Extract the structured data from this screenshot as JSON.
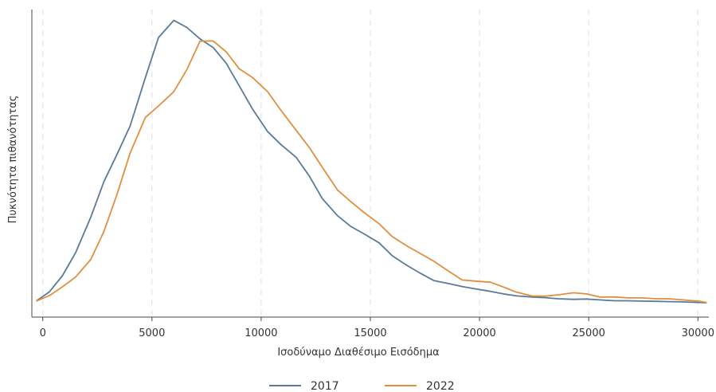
{
  "chart_data": {
    "type": "line",
    "xlabel": "Ισοδύναμο Διαθέσιμο Εισόδημα",
    "ylabel": "Πυκνότητα πιθανότητας",
    "xlim": [
      -500,
      30500
    ],
    "ylim": [
      0,
      1.0
    ],
    "x_ticks": [
      0,
      5000,
      10000,
      15000,
      20000,
      25000,
      30000
    ],
    "x_tick_labels": [
      "0",
      "5000",
      "10000",
      "15000",
      "20000",
      "25000",
      "30000"
    ],
    "y_ticks_shown": false,
    "grid": "vertical dashed",
    "legend_position": "bottom",
    "series": [
      {
        "name": "2017",
        "color": "#5b7a99",
        "x": [
          -300,
          300,
          900,
          1500,
          2200,
          2800,
          3400,
          4000,
          4700,
          5300,
          6000,
          6600,
          7200,
          7800,
          8400,
          9000,
          9600,
          10300,
          10900,
          11600,
          12200,
          12800,
          13500,
          14100,
          14700,
          15400,
          16000,
          16700,
          17300,
          17900,
          18600,
          19200,
          19800,
          20500,
          21100,
          21700,
          22400,
          23000,
          23600,
          24300,
          24900,
          25500,
          26200,
          26800,
          27400,
          28100,
          28700,
          29300,
          30000,
          30400
        ],
        "y": [
          0.006,
          0.038,
          0.095,
          0.175,
          0.3,
          0.425,
          0.52,
          0.62,
          0.79,
          0.93,
          0.99,
          0.965,
          0.925,
          0.895,
          0.84,
          0.76,
          0.68,
          0.6,
          0.555,
          0.51,
          0.445,
          0.365,
          0.305,
          0.268,
          0.242,
          0.21,
          0.165,
          0.13,
          0.103,
          0.078,
          0.067,
          0.057,
          0.049,
          0.04,
          0.031,
          0.024,
          0.02,
          0.018,
          0.014,
          0.012,
          0.013,
          0.01,
          0.007,
          0.007,
          0.006,
          0.005,
          0.004,
          0.003,
          0.001,
          0.0
        ]
      },
      {
        "name": "2022",
        "color": "#e08f3e",
        "x": [
          -300,
          300,
          900,
          1500,
          2200,
          2800,
          3400,
          4000,
          4700,
          5300,
          6000,
          6600,
          7200,
          7800,
          8400,
          9000,
          9600,
          10300,
          10900,
          11600,
          12200,
          12800,
          13500,
          14100,
          14700,
          15400,
          16000,
          16700,
          17300,
          17900,
          18600,
          19200,
          19800,
          20500,
          21100,
          21700,
          22400,
          23000,
          23600,
          24300,
          24900,
          25500,
          26200,
          26800,
          27400,
          28100,
          28700,
          29300,
          30000,
          30400
        ],
        "y": [
          0.006,
          0.025,
          0.056,
          0.09,
          0.152,
          0.25,
          0.38,
          0.525,
          0.65,
          0.69,
          0.74,
          0.818,
          0.917,
          0.918,
          0.88,
          0.82,
          0.79,
          0.74,
          0.675,
          0.605,
          0.545,
          0.475,
          0.395,
          0.355,
          0.317,
          0.277,
          0.232,
          0.198,
          0.172,
          0.146,
          0.11,
          0.08,
          0.076,
          0.072,
          0.055,
          0.037,
          0.024,
          0.023,
          0.028,
          0.035,
          0.031,
          0.02,
          0.02,
          0.017,
          0.017,
          0.014,
          0.014,
          0.01,
          0.006,
          0.001
        ]
      }
    ]
  }
}
